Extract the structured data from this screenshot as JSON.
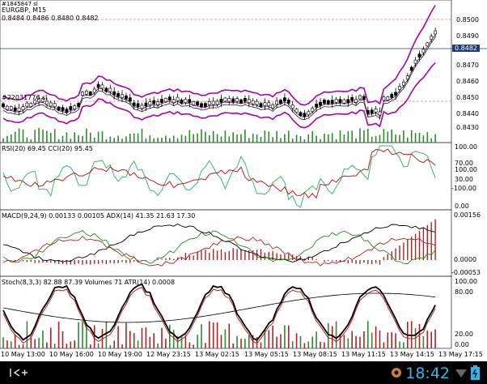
{
  "symbol_line": "EURGBP, M15",
  "ohlc_line": "0.8484 0.8486 0.8480 0.8482",
  "overlay_label": "#1845847 sl",
  "order_label": "#2203​1776 sl",
  "current_price": "0.8482",
  "price_axis": [
    "0.8500",
    "0.8490",
    "0.8470",
    "0.8460",
    "0.8450",
    "0.8440",
    "0.8430"
  ],
  "rsi_label": "RSI(20) 69.45 CCI(20) 95.45",
  "rsi_axis": [
    "100.00",
    "70.00",
    "100.00",
    "30.00",
    "-100.00",
    "0.00"
  ],
  "macd_label": "MACD(9,24,9) 0.00133 0.00105 ADX(14) 41.35 21.63 17.30",
  "macd_axis": [
    "0.00156",
    "0.0000",
    "-0.00053"
  ],
  "stoch_label": "Stoch(8,3,3) 82.88 87.39 Volumes 71 ATR(14) 0.0008",
  "stoch_axis": [
    "100.00",
    "80.00",
    "20.00",
    "0.00"
  ],
  "time_axis": [
    "10 May 13:00",
    "10 May 16:00",
    "10 May 19:00",
    "12 May 23:15",
    "13 May 02:15",
    "13 May 05:15",
    "13 May 08:15",
    "13 May 11:15",
    "13 May 14:15",
    "13 May 17:15"
  ],
  "clock": "18:42",
  "colors": {
    "bands": "#aa00aa",
    "macd_hist": "#b22222",
    "stoch_main": "#000000",
    "stoch_signal": "#b22222",
    "rsi": "#228b22",
    "cci": "#3cb371",
    "current_price_bg": "#1a3d7c"
  },
  "nav_icons": [
    "collapse-icon",
    "settings-icon",
    "signal-icon",
    "battery-icon"
  ]
}
